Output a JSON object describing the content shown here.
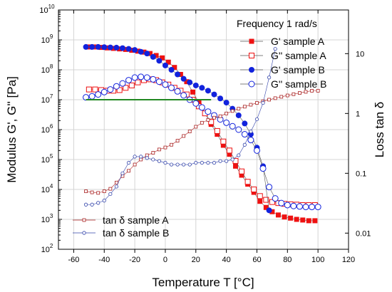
{
  "chart_data": {
    "type": "scatter",
    "xlabel": "Temperature T [°C]",
    "ylabel_left": "Modulus G', G'' [Pa]",
    "ylabel_right": "Loss tan δ",
    "legend_title": "Frequency 1 rad/s",
    "x_ticks": [
      "-60",
      "-40",
      "-20",
      "0",
      "20",
      "40",
      "60",
      "80",
      "100",
      "120"
    ],
    "y_left_ticks": [
      "10",
      "10",
      "10",
      "10",
      "10",
      "10",
      "10",
      "10",
      "10"
    ],
    "y_left_tick_exps": [
      "2",
      "3",
      "4",
      "5",
      "6",
      "7",
      "8",
      "9",
      "10"
    ],
    "y_right_ticks": [
      "0.01",
      "0.1",
      "1",
      "10"
    ],
    "xlim": [
      -70,
      120
    ],
    "y_left_log_range": [
      2,
      10
    ],
    "y_right_log_range": [
      -2.27,
      1.73
    ],
    "log_scale": true,
    "grid": true,
    "legend_upper_position": "top-right",
    "legend_lower_position": "bottom-left",
    "series": [
      {
        "name": "G' sample A",
        "axis": "left",
        "marker": "filled-square",
        "color": "#ee1111",
        "x": [
          -50,
          -46,
          -42,
          -38,
          -34,
          -30,
          -26,
          -22,
          -18,
          -14,
          -10,
          -6,
          -2,
          2,
          6,
          10,
          14,
          18,
          22,
          26,
          30,
          34,
          38,
          42,
          46,
          50,
          54,
          58,
          62,
          66,
          70,
          74,
          78,
          82,
          86,
          90,
          94,
          98
        ],
        "y": [
          580000000.0,
          580000000.0,
          560000000.0,
          540000000.0,
          520000000.0,
          500000000.0,
          480000000.0,
          450000000.0,
          420000000.0,
          390000000.0,
          350000000.0,
          300000000.0,
          250000000.0,
          180000000.0,
          120000000.0,
          70000000.0,
          40000000.0,
          18000000.0,
          8000000.0,
          3500000.0,
          1500000.0,
          700000.0,
          300000.0,
          150000.0,
          60000.0,
          30000.0,
          15000.0,
          8000.0,
          4000.0,
          2500.0,
          1800.0,
          1400.0,
          1200.0,
          1100.0,
          1000.0,
          950.0,
          900.0,
          900.0
        ]
      },
      {
        "name": "G'' sample A",
        "axis": "left",
        "marker": "open-square",
        "color": "#ee1111",
        "x": [
          -50,
          -46,
          -42,
          -38,
          -34,
          -30,
          -26,
          -22,
          -18,
          -14,
          -10,
          -6,
          -2,
          2,
          6,
          10,
          14,
          18,
          22,
          26,
          30,
          34,
          38,
          42,
          46,
          50,
          54,
          58,
          62,
          66,
          70,
          74,
          78,
          82,
          86,
          90,
          94,
          98
        ],
        "y": [
          22000000.0,
          22000000.0,
          21000000.0,
          20000000.0,
          20000000.0,
          21000000.0,
          25000000.0,
          30000000.0,
          38000000.0,
          45000000.0,
          48000000.0,
          45000000.0,
          38000000.0,
          32000000.0,
          25000000.0,
          20000000.0,
          15000000.0,
          10000000.0,
          6000000.0,
          3500000.0,
          1800000.0,
          900000.0,
          400000.0,
          200000.0,
          90000.0,
          40000.0,
          18000.0,
          10000.0,
          6000.0,
          4500.0,
          3800.0,
          3500.0,
          3300.0,
          3200.0,
          3100.0,
          3000.0,
          3000.0,
          3000.0
        ]
      },
      {
        "name": "G' sample B",
        "axis": "left",
        "marker": "filled-circle",
        "color": "#1122dd",
        "x": [
          -52,
          -48,
          -44,
          -40,
          -36,
          -32,
          -28,
          -24,
          -20,
          -16,
          -12,
          -8,
          -4,
          0,
          4,
          8,
          12,
          16,
          20,
          24,
          28,
          32,
          36,
          40,
          44,
          48,
          52,
          56,
          60,
          64,
          68
        ],
        "y": [
          580000000.0,
          580000000.0,
          580000000.0,
          570000000.0,
          560000000.0,
          550000000.0,
          530000000.0,
          500000000.0,
          460000000.0,
          400000000.0,
          350000000.0,
          270000000.0,
          200000000.0,
          140000000.0,
          100000000.0,
          70000000.0,
          50000000.0,
          38000000.0,
          30000000.0,
          25000000.0,
          20000000.0,
          15000000.0,
          11000000.0,
          8000000.0,
          5000000.0,
          3000000.0,
          1600000.0,
          700000.0,
          250000.0,
          60000.0,
          2000.0
        ]
      },
      {
        "name": "G'' sample B",
        "axis": "left",
        "marker": "open-circle",
        "color": "#1122dd",
        "x": [
          -52,
          -48,
          -44,
          -40,
          -36,
          -32,
          -28,
          -24,
          -20,
          -16,
          -12,
          -8,
          -4,
          0,
          4,
          8,
          12,
          16,
          20,
          24,
          28,
          32,
          36,
          40,
          44,
          48,
          52,
          56,
          60,
          64,
          68,
          72,
          76,
          80,
          84,
          88,
          92,
          96,
          100
        ],
        "y": [
          12000000.0,
          13000000.0,
          15000000.0,
          18000000.0,
          22000000.0,
          28000000.0,
          35000000.0,
          45000000.0,
          55000000.0,
          58000000.0,
          55000000.0,
          48000000.0,
          40000000.0,
          32000000.0,
          25000000.0,
          19000000.0,
          14000000.0,
          10000000.0,
          7500000.0,
          5500000.0,
          4000000.0,
          3000000.0,
          2200000.0,
          1700000.0,
          1300000.0,
          1000000.0,
          700000.0,
          450000.0,
          200000.0,
          50000.0,
          12000.0,
          5000.0,
          3500.0,
          3000.0,
          2800.0,
          2700.0,
          2600.0,
          2600.0,
          2600.0
        ]
      },
      {
        "name": "tan δ sample A",
        "axis": "right",
        "marker": "small-open-square",
        "color": "#aa2222",
        "x": [
          -52,
          -48,
          -44,
          -40,
          -36,
          -32,
          -28,
          -24,
          -20,
          -16,
          -12,
          -8,
          -4,
          0,
          4,
          8,
          12,
          16,
          20,
          24,
          28,
          32,
          36,
          40,
          44,
          48,
          52,
          56,
          60,
          64,
          68,
          72,
          76,
          80,
          84,
          88,
          92,
          96,
          100
        ],
        "y": [
          0.05,
          0.048,
          0.047,
          0.05,
          0.055,
          0.07,
          0.09,
          0.11,
          0.14,
          0.17,
          0.2,
          0.22,
          0.25,
          0.27,
          0.3,
          0.35,
          0.42,
          0.5,
          0.6,
          0.7,
          0.78,
          0.85,
          0.9,
          1,
          1.1,
          1.2,
          1.3,
          1.4,
          1.5,
          1.6,
          1.7,
          1.8,
          1.9,
          2,
          2.1,
          2.2,
          2.3,
          2.4,
          2.4
        ]
      },
      {
        "name": "tan δ sample B",
        "axis": "right",
        "marker": "small-open-circle",
        "color": "#3344aa",
        "x": [
          -52,
          -48,
          -44,
          -40,
          -36,
          -32,
          -28,
          -24,
          -20,
          -16,
          -12,
          -8,
          -4,
          0,
          4,
          8,
          12,
          16,
          20,
          24,
          28,
          32,
          36,
          40,
          44,
          48,
          52,
          56,
          60,
          64,
          68,
          72
        ],
        "y": [
          0.03,
          0.03,
          0.032,
          0.035,
          0.045,
          0.06,
          0.1,
          0.15,
          0.19,
          0.19,
          0.18,
          0.17,
          0.16,
          0.15,
          0.14,
          0.14,
          0.14,
          0.14,
          0.15,
          0.15,
          0.15,
          0.15,
          0.16,
          0.16,
          0.17,
          0.2,
          0.3,
          0.5,
          0.8,
          1.5,
          4,
          12
        ]
      },
      {
        "name": "",
        "axis": "left",
        "marker": "line",
        "color": "#228822",
        "x": [
          -52,
          30
        ],
        "y": [
          10000000.0,
          10000000.0
        ]
      }
    ]
  }
}
